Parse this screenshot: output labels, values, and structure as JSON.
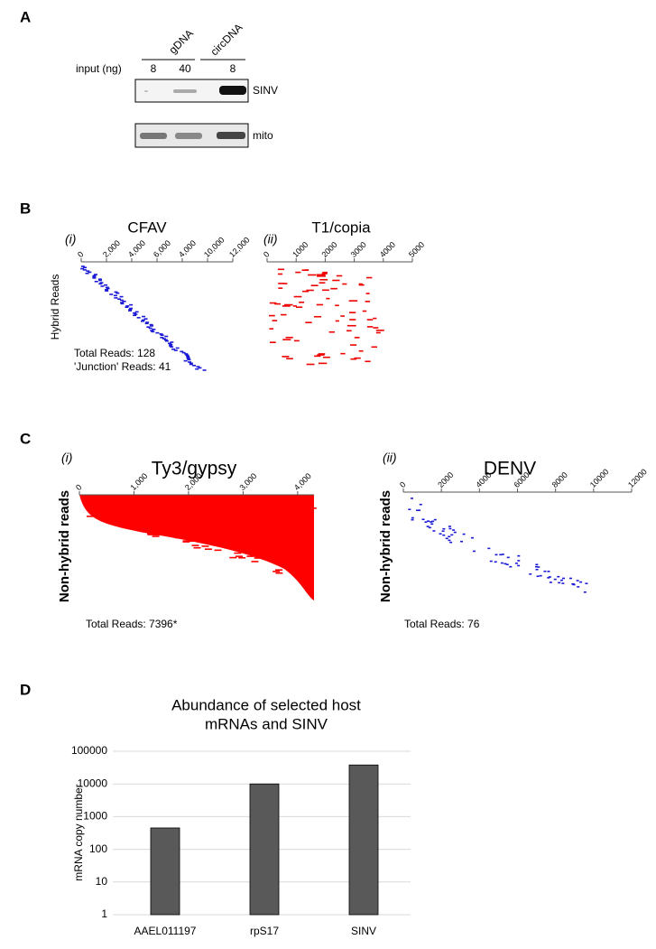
{
  "panel_labels": [
    "A",
    "B",
    "C",
    "D"
  ],
  "gel": {
    "groups": [
      "gDNA",
      "circDNA"
    ],
    "input_label": "input (ng)",
    "inputs": [
      "8",
      "40",
      "8"
    ],
    "bands": [
      "SINV",
      "mito"
    ]
  },
  "read_plots": [
    {
      "label": "(i)",
      "title": "CFAV",
      "axis_ticks": [
        "0",
        "2,000",
        "4,000",
        "6,000",
        "4,000",
        "10,000",
        "12,000"
      ],
      "y_label": "Hybrid Reads",
      "notes": [
        "Total Reads: 128",
        "'Junction' Reads: 41"
      ]
    },
    {
      "label": "(ii)",
      "title": "T1/copia",
      "axis_ticks": [
        "0",
        "1000",
        "2000",
        "3000",
        "4000",
        "5000"
      ]
    },
    {
      "label": "(i)",
      "title": "Ty3/gypsy",
      "axis_ticks": [
        "0",
        "1,000",
        "2,000",
        "3,000",
        "4,000"
      ],
      "y_label": "Non-hybrid reads",
      "notes": [
        "Total Reads: 7396*"
      ]
    },
    {
      "label": "(ii)",
      "title": "DENV",
      "axis_ticks": [
        "0",
        "2000",
        "4000",
        "6000",
        "8000",
        "10000",
        "12000"
      ],
      "y_label": "Non-hybrid reads",
      "notes": [
        "Total Reads: 76"
      ]
    }
  ],
  "chart_data": {
    "type": "bar",
    "title": [
      "Abundance of selected host",
      "mRNAs and SINV"
    ],
    "y_label": "mRNA copy number",
    "categories": [
      "AAEL011197",
      "rpS17",
      "SINV"
    ],
    "values": [
      450,
      10000,
      38000
    ],
    "color": "#595959",
    "log_y": true,
    "ylim": [
      1,
      100000
    ],
    "yticks": [
      1,
      10,
      100,
      1000,
      10000,
      100000
    ],
    "grid": true
  }
}
